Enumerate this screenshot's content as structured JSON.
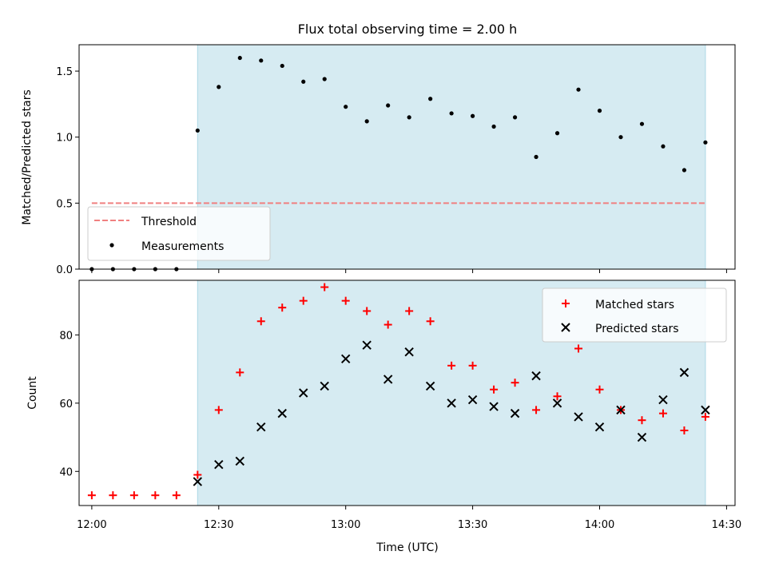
{
  "chart_data": [
    {
      "type": "scatter",
      "title": "Flux total observing time = 2.00 h",
      "ylabel": "Matched/Predicted stars",
      "ylim": [
        0,
        1.7
      ],
      "yticks": [
        "0.0",
        "0.5",
        "1.0",
        "1.5"
      ],
      "legend_position": "lower-left",
      "observing_window": {
        "start": "12:25",
        "end": "14:25",
        "color": "#add8e6"
      },
      "threshold": {
        "name": "Threshold",
        "value": 0.5,
        "x_start": "12:00",
        "x_end": "14:25",
        "color": "#f08080"
      },
      "series": [
        {
          "name": "Measurements",
          "color": "#000000",
          "marker": "dot",
          "points": [
            [
              "12:00",
              0
            ],
            [
              "12:05",
              0
            ],
            [
              "12:10",
              0
            ],
            [
              "12:15",
              0
            ],
            [
              "12:20",
              0
            ],
            [
              "12:25",
              1.05
            ],
            [
              "12:30",
              1.38
            ],
            [
              "12:35",
              1.6
            ],
            [
              "12:40",
              1.58
            ],
            [
              "12:45",
              1.54
            ],
            [
              "12:50",
              1.42
            ],
            [
              "12:55",
              1.44
            ],
            [
              "13:00",
              1.23
            ],
            [
              "13:05",
              1.12
            ],
            [
              "13:10",
              1.24
            ],
            [
              "13:15",
              1.15
            ],
            [
              "13:20",
              1.29
            ],
            [
              "13:25",
              1.18
            ],
            [
              "13:30",
              1.16
            ],
            [
              "13:35",
              1.08
            ],
            [
              "13:40",
              1.15
            ],
            [
              "13:45",
              0.85
            ],
            [
              "13:50",
              1.03
            ],
            [
              "13:55",
              1.36
            ],
            [
              "14:00",
              1.2
            ],
            [
              "14:05",
              1.0
            ],
            [
              "14:10",
              1.1
            ],
            [
              "14:15",
              0.93
            ],
            [
              "14:20",
              0.75
            ],
            [
              "14:25",
              0.96
            ]
          ]
        }
      ]
    },
    {
      "type": "scatter",
      "xlabel": "Time (UTC)",
      "ylabel": "Count",
      "ylim": [
        30,
        96
      ],
      "yticks": [
        "40",
        "60",
        "80"
      ],
      "xticks": [
        "12:00",
        "12:30",
        "13:00",
        "13:30",
        "14:00",
        "14:30"
      ],
      "xlim": [
        "11:57",
        "14:32"
      ],
      "legend_position": "top-right",
      "observing_window": {
        "start": "12:25",
        "end": "14:25",
        "color": "#add8e6"
      },
      "series": [
        {
          "name": "Matched stars",
          "color": "#ff0000",
          "marker": "plus",
          "points": [
            [
              "12:00",
              33
            ],
            [
              "12:05",
              33
            ],
            [
              "12:10",
              33
            ],
            [
              "12:15",
              33
            ],
            [
              "12:20",
              33
            ],
            [
              "12:25",
              39
            ],
            [
              "12:30",
              58
            ],
            [
              "12:35",
              69
            ],
            [
              "12:40",
              84
            ],
            [
              "12:45",
              88
            ],
            [
              "12:50",
              90
            ],
            [
              "12:55",
              94
            ],
            [
              "13:00",
              90
            ],
            [
              "13:05",
              87
            ],
            [
              "13:10",
              83
            ],
            [
              "13:15",
              87
            ],
            [
              "13:20",
              84
            ],
            [
              "13:25",
              71
            ],
            [
              "13:30",
              71
            ],
            [
              "13:35",
              64
            ],
            [
              "13:40",
              66
            ],
            [
              "13:45",
              58
            ],
            [
              "13:50",
              62
            ],
            [
              "13:55",
              76
            ],
            [
              "14:00",
              64
            ],
            [
              "14:05",
              58
            ],
            [
              "14:10",
              55
            ],
            [
              "14:15",
              57
            ],
            [
              "14:20",
              52
            ],
            [
              "14:25",
              56
            ]
          ]
        },
        {
          "name": "Predicted stars",
          "color": "#000000",
          "marker": "x",
          "points": [
            [
              "12:25",
              37
            ],
            [
              "12:30",
              42
            ],
            [
              "12:35",
              43
            ],
            [
              "12:40",
              53
            ],
            [
              "12:45",
              57
            ],
            [
              "12:50",
              63
            ],
            [
              "12:55",
              65
            ],
            [
              "13:00",
              73
            ],
            [
              "13:05",
              77
            ],
            [
              "13:10",
              67
            ],
            [
              "13:15",
              75
            ],
            [
              "13:20",
              65
            ],
            [
              "13:25",
              60
            ],
            [
              "13:30",
              61
            ],
            [
              "13:35",
              59
            ],
            [
              "13:40",
              57
            ],
            [
              "13:45",
              68
            ],
            [
              "13:50",
              60
            ],
            [
              "13:55",
              56
            ],
            [
              "14:00",
              53
            ],
            [
              "14:05",
              58
            ],
            [
              "14:10",
              50
            ],
            [
              "14:15",
              61
            ],
            [
              "14:20",
              69
            ],
            [
              "14:25",
              58
            ]
          ]
        }
      ]
    }
  ]
}
